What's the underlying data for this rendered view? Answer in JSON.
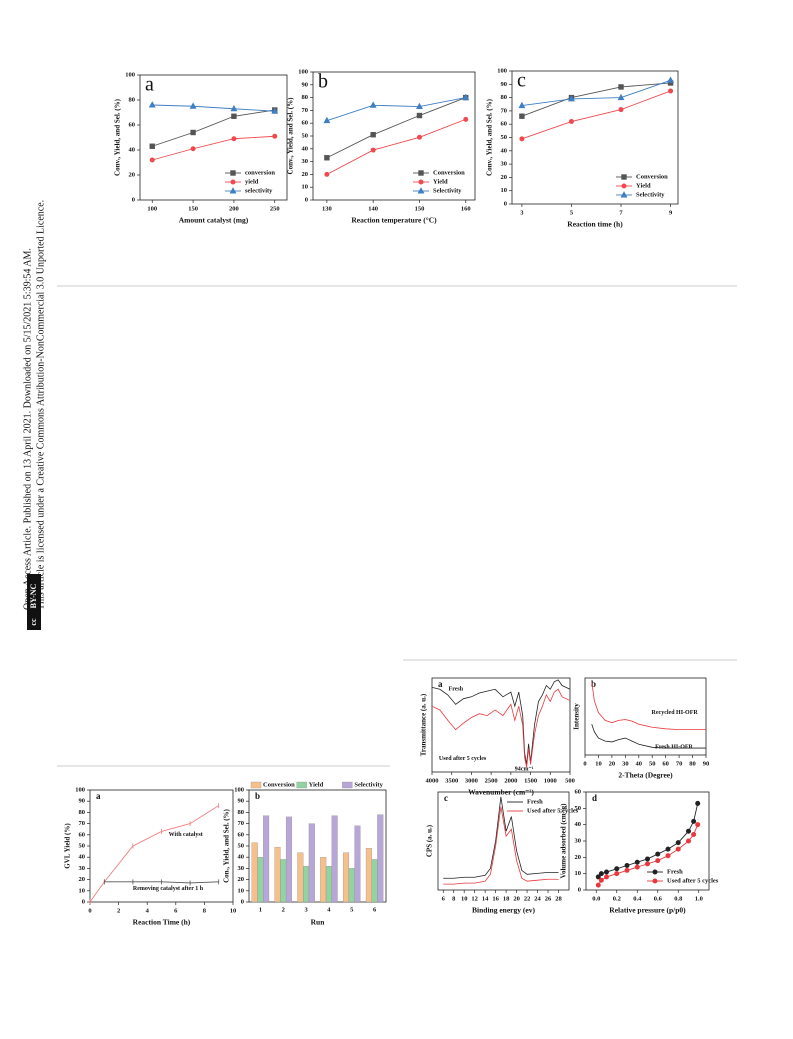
{
  "sidebar": {
    "line1": "Open Access Article. Published on 13 April 2021. Downloaded on 5/15/2021 5:39:54 AM.",
    "line2": "This article is licensed under a Creative Commons Attribution-NonCommercial 3.0 Unported Licence.",
    "badge_cc": "cc",
    "badge": "BY-NC"
  },
  "chart_data": [
    {
      "type": "line",
      "panel": "a",
      "xlabel": "Amount catalyst (mg)",
      "ylabel": "Conv., Yield, and Sel. (%)",
      "x": [
        100,
        150,
        200,
        250
      ],
      "xlim": [
        85,
        265
      ],
      "xticks": [
        100,
        150,
        200,
        250
      ],
      "ylim": [
        0,
        100
      ],
      "yticks": [
        0,
        20,
        40,
        60,
        80,
        100
      ],
      "legend": "bottom-right",
      "series": [
        {
          "name": "conversion",
          "color": "#555555",
          "marker": "square",
          "values": [
            43,
            54,
            67,
            72
          ]
        },
        {
          "name": "yield",
          "color": "#f0494f",
          "marker": "circle",
          "values": [
            32,
            41,
            49,
            51
          ]
        },
        {
          "name": "selectivity",
          "color": "#3f7fc4",
          "marker": "triangle",
          "values": [
            76,
            75,
            73,
            71
          ]
        }
      ]
    },
    {
      "type": "line",
      "panel": "b",
      "xlabel": "Reaction temperature (°C)",
      "ylabel": "Conv., Yield, and Sel. (%)",
      "x": [
        130,
        140,
        150,
        160
      ],
      "xlim": [
        127,
        162
      ],
      "xticks": [
        130,
        140,
        150,
        160
      ],
      "ylim": [
        0,
        100
      ],
      "yticks": [
        0,
        10,
        20,
        30,
        40,
        50,
        60,
        70,
        80,
        90,
        100
      ],
      "legend": "bottom-right",
      "series": [
        {
          "name": "Conversion",
          "color": "#555555",
          "marker": "square",
          "values": [
            33,
            51,
            66,
            80
          ]
        },
        {
          "name": "Yield",
          "color": "#f0494f",
          "marker": "circle",
          "values": [
            20,
            39,
            49,
            63
          ]
        },
        {
          "name": "Selectivity",
          "color": "#3f7fc4",
          "marker": "triangle",
          "values": [
            62,
            74,
            73,
            80
          ]
        }
      ]
    },
    {
      "type": "line",
      "panel": "c",
      "xlabel": "Reaction time (h)",
      "ylabel": "Conv., Yield, and Sel. (%)",
      "x": [
        3,
        5,
        7,
        9
      ],
      "xlim": [
        2.6,
        9.3
      ],
      "xticks": [
        3,
        5,
        7,
        9
      ],
      "ylim": [
        0,
        100
      ],
      "yticks": [
        0,
        10,
        20,
        30,
        40,
        50,
        60,
        70,
        80,
        90,
        100
      ],
      "legend": "bottom-right",
      "series": [
        {
          "name": "Conversion",
          "color": "#555555",
          "marker": "square",
          "values": [
            66,
            80,
            88,
            91
          ]
        },
        {
          "name": "Yield",
          "color": "#f0494f",
          "marker": "circle",
          "values": [
            49,
            62,
            71,
            85
          ]
        },
        {
          "name": "Selectivity",
          "color": "#3f7fc4",
          "marker": "triangle",
          "values": [
            74,
            79,
            80,
            93
          ]
        }
      ]
    },
    {
      "type": "line",
      "panel": "a",
      "xlabel": "Reaction Time (h)",
      "ylabel": "GVL Yield (%)",
      "x": [
        0,
        1,
        3,
        5,
        7,
        9
      ],
      "xlim": [
        0,
        10
      ],
      "xticks": [
        0,
        2,
        4,
        6,
        8,
        10
      ],
      "ylim": [
        0,
        100
      ],
      "yticks": [
        0,
        10,
        20,
        30,
        40,
        50,
        60,
        70,
        80,
        90,
        100
      ],
      "legend": "inline",
      "series": [
        {
          "name": "With catalyst",
          "color": "#f08080",
          "marker": "dash",
          "values": [
            0,
            18,
            50,
            63,
            70,
            86
          ]
        },
        {
          "name": "Removing catalyst after 1 h",
          "color": "#555555",
          "marker": "dash",
          "values": [
            null,
            18,
            18,
            18,
            17,
            18
          ]
        }
      ]
    },
    {
      "type": "bar",
      "panel": "b",
      "xlabel": "Run",
      "ylabel": "Con., Yield, and Sel. (%)",
      "categories": [
        "1",
        "2",
        "3",
        "4",
        "5",
        "6"
      ],
      "ylim": [
        0,
        100
      ],
      "yticks": [
        0,
        10,
        20,
        30,
        40,
        50,
        60,
        70,
        80,
        90,
        100
      ],
      "legend": "top",
      "series": [
        {
          "name": "Conversion",
          "color": "#f6c08c",
          "values": [
            53,
            49,
            44,
            40,
            44,
            48
          ]
        },
        {
          "name": "Yield",
          "color": "#93d3a2",
          "values": [
            40,
            38,
            32,
            32,
            30,
            38
          ]
        },
        {
          "name": "Selectivity",
          "color": "#b8a6d8",
          "values": [
            77,
            76,
            70,
            77,
            68,
            78
          ]
        }
      ]
    },
    {
      "type": "line",
      "panel": "a",
      "xlabel": "Wavenumber (cm⁻¹)",
      "ylabel": "Transmittance (a. u.)",
      "x": [
        4000,
        3800,
        3600,
        3400,
        3200,
        3000,
        2800,
        2600,
        2400,
        2200,
        2000,
        1900,
        1800,
        1700,
        1650,
        1600,
        1550,
        1500,
        1400,
        1300,
        1200,
        1100,
        1000,
        900,
        800,
        700,
        600,
        500
      ],
      "xlim": [
        4000,
        500
      ],
      "xticks": [
        4000,
        3500,
        3000,
        2500,
        2000,
        1500,
        1000,
        500
      ],
      "ylim": [
        0,
        100
      ],
      "legend": "inline",
      "annotations": [
        "94cm⁻¹"
      ],
      "series": [
        {
          "name": "Fresh",
          "color": "#222222",
          "values": [
            90,
            88,
            82,
            72,
            78,
            80,
            84,
            86,
            88,
            80,
            85,
            70,
            85,
            60,
            20,
            8,
            30,
            10,
            50,
            75,
            82,
            92,
            88,
            96,
            98,
            92,
            90,
            88
          ]
        },
        {
          "name": "Used after 5 cycles",
          "color": "#e8383d",
          "values": [
            70,
            66,
            55,
            45,
            52,
            58,
            62,
            60,
            66,
            60,
            72,
            55,
            70,
            50,
            15,
            5,
            25,
            8,
            40,
            60,
            70,
            82,
            75,
            85,
            88,
            80,
            78,
            76
          ]
        }
      ]
    },
    {
      "type": "line",
      "panel": "b",
      "xlabel": "2-Theta (Degree)",
      "ylabel": "Intensity",
      "x": [
        5,
        7,
        10,
        15,
        20,
        25,
        30,
        35,
        40,
        50,
        60,
        70,
        80,
        90
      ],
      "xlim": [
        0,
        90
      ],
      "xticks": [
        0,
        10,
        20,
        30,
        40,
        50,
        60,
        70,
        80,
        90
      ],
      "ylim": [
        0,
        100
      ],
      "legend": "inline",
      "series": [
        {
          "name": "Recycled HI-OFR",
          "color": "#e8383d",
          "values": [
            95,
            70,
            55,
            45,
            42,
            45,
            46,
            44,
            40,
            36,
            34,
            33,
            33,
            33
          ]
        },
        {
          "name": "Fresh HI-OFR",
          "color": "#222222",
          "values": [
            40,
            30,
            22,
            18,
            17,
            20,
            22,
            18,
            14,
            10,
            9,
            9,
            9,
            9
          ]
        }
      ]
    },
    {
      "type": "line",
      "panel": "c",
      "xlabel": "Binding energy (ev)",
      "ylabel": "CPS (a. u.)",
      "x": [
        6,
        8,
        10,
        12,
        14,
        15,
        16,
        17,
        18,
        19,
        20,
        21,
        22,
        24,
        26,
        28
      ],
      "xlim": [
        5,
        30
      ],
      "xticks": [
        6,
        8,
        10,
        12,
        14,
        16,
        18,
        20,
        22,
        24,
        26,
        28
      ],
      "ylim": [
        0,
        100
      ],
      "legend": "top-right",
      "series": [
        {
          "name": "Fresh",
          "color": "#222222",
          "values": [
            12,
            12,
            13,
            13,
            15,
            22,
            50,
            95,
            60,
            75,
            40,
            20,
            16,
            17,
            18,
            18
          ]
        },
        {
          "name": "Used after 5 cycles",
          "color": "#e8383d",
          "values": [
            6,
            6,
            7,
            7,
            9,
            16,
            45,
            85,
            55,
            62,
            30,
            12,
            9,
            10,
            11,
            11
          ]
        }
      ]
    },
    {
      "type": "line",
      "panel": "d",
      "xlabel": "Relative pressure (p/p0)",
      "ylabel": "Volume adsorbed (cm³/g)",
      "x": [
        0.02,
        0.05,
        0.1,
        0.2,
        0.3,
        0.4,
        0.5,
        0.6,
        0.7,
        0.8,
        0.9,
        0.95,
        0.99
      ],
      "xlim": [
        -0.1,
        1.1
      ],
      "xticks": [
        {
          "value": 0,
          "label": "0.0"
        },
        0.2,
        0.4,
        0.6,
        0.8,
        {
          "value": 1,
          "label": "1.0"
        }
      ],
      "ylim": [
        0,
        60
      ],
      "yticks": [
        0,
        10,
        20,
        30,
        40,
        50,
        60
      ],
      "legend": "bottom-right",
      "series": [
        {
          "name": "Fresh",
          "color": "#222222",
          "marker": "circle",
          "values": [
            8,
            10,
            11,
            13,
            15,
            17,
            19,
            22,
            25,
            29,
            36,
            42,
            53
          ]
        },
        {
          "name": "Used after 5 cycles",
          "color": "#e8383d",
          "marker": "circle",
          "values": [
            3,
            6,
            8,
            10,
            12,
            14,
            16,
            18,
            21,
            25,
            30,
            34,
            40
          ]
        }
      ]
    }
  ]
}
